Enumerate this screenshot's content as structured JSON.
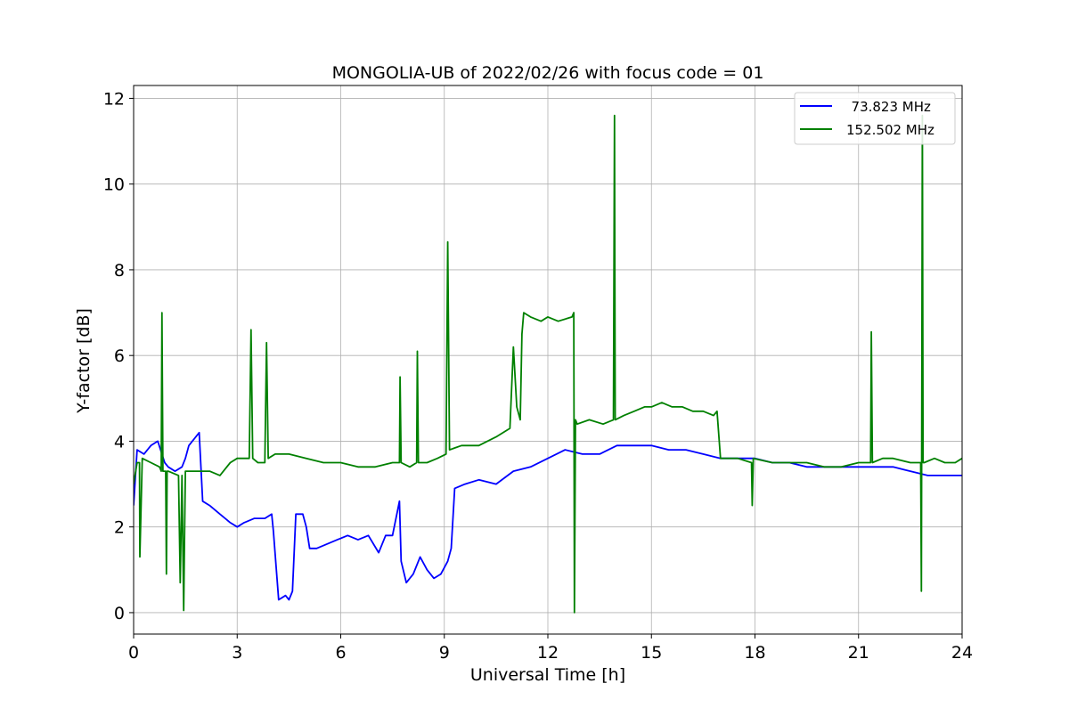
{
  "chart_data": {
    "type": "line",
    "title": "MONGOLIA-UB of 2022/02/26 with focus code = 01",
    "xlabel": "Universal Time [h]",
    "ylabel": "Y-factor [dB]",
    "xlim": [
      0,
      24
    ],
    "ylim": [
      -0.5,
      12.3
    ],
    "xticks": [
      0,
      3,
      6,
      9,
      12,
      15,
      18,
      21,
      24
    ],
    "yticks": [
      0,
      2,
      4,
      6,
      8,
      10,
      12
    ],
    "grid": true,
    "legend_position": "top-right",
    "series": [
      {
        "name": "73.823 MHz",
        "legend_label": "  73.823 MHz",
        "color": "#0000ff",
        "x": [
          0.0,
          0.1,
          0.3,
          0.5,
          0.7,
          0.9,
          1.0,
          1.2,
          1.4,
          1.5,
          1.6,
          1.8,
          1.9,
          2.0,
          2.2,
          2.5,
          2.8,
          3.0,
          3.2,
          3.5,
          3.8,
          4.0,
          4.05,
          4.2,
          4.4,
          4.5,
          4.6,
          4.7,
          4.9,
          5.0,
          5.1,
          5.3,
          5.6,
          5.9,
          6.2,
          6.5,
          6.8,
          7.1,
          7.3,
          7.5,
          7.7,
          7.75,
          7.9,
          8.1,
          8.3,
          8.5,
          8.7,
          8.9,
          9.1,
          9.2,
          9.3,
          9.6,
          10.0,
          10.5,
          11.0,
          11.5,
          12.0,
          12.5,
          13.0,
          13.5,
          14.0,
          14.5,
          15.0,
          15.5,
          16.0,
          16.5,
          17.0,
          17.5,
          18.0,
          18.5,
          19.0,
          19.5,
          20.0,
          20.5,
          21.0,
          21.5,
          22.0,
          22.5,
          23.0,
          23.5,
          24.0
        ],
        "y": [
          2.5,
          3.8,
          3.7,
          3.9,
          4.0,
          3.5,
          3.4,
          3.3,
          3.4,
          3.6,
          3.9,
          4.1,
          4.2,
          2.6,
          2.5,
          2.3,
          2.1,
          2.0,
          2.1,
          2.2,
          2.2,
          2.3,
          1.9,
          0.3,
          0.4,
          0.3,
          0.5,
          2.3,
          2.3,
          2.0,
          1.5,
          1.5,
          1.6,
          1.7,
          1.8,
          1.7,
          1.8,
          1.4,
          1.8,
          1.8,
          2.6,
          1.2,
          0.7,
          0.9,
          1.3,
          1.0,
          0.8,
          0.9,
          1.2,
          1.5,
          2.9,
          3.0,
          3.1,
          3.0,
          3.3,
          3.4,
          3.6,
          3.8,
          3.7,
          3.7,
          3.9,
          3.9,
          3.9,
          3.8,
          3.8,
          3.7,
          3.6,
          3.6,
          3.6,
          3.5,
          3.5,
          3.4,
          3.4,
          3.4,
          3.4,
          3.4,
          3.4,
          3.3,
          3.2,
          3.2,
          3.2
        ]
      },
      {
        "name": "152.502 MHz",
        "legend_label": "152.502 MHz",
        "color": "#008000",
        "x": [
          0.0,
          0.1,
          0.17,
          0.18,
          0.25,
          0.5,
          0.75,
          0.8,
          0.82,
          0.85,
          0.93,
          0.95,
          0.97,
          1.0,
          1.3,
          1.35,
          1.4,
          1.45,
          1.47,
          1.5,
          1.8,
          2.2,
          2.5,
          2.8,
          3.0,
          3.2,
          3.35,
          3.4,
          3.45,
          3.6,
          3.8,
          3.85,
          3.9,
          4.1,
          4.5,
          5.0,
          5.5,
          6.0,
          6.5,
          7.0,
          7.5,
          7.7,
          7.72,
          7.75,
          8.0,
          8.2,
          8.22,
          8.25,
          8.5,
          8.8,
          9.05,
          9.1,
          9.15,
          9.5,
          10.0,
          10.5,
          10.9,
          11.0,
          11.1,
          11.2,
          11.25,
          11.3,
          11.5,
          11.8,
          12.0,
          12.3,
          12.7,
          12.75,
          12.77,
          12.8,
          12.85,
          13.2,
          13.6,
          13.9,
          13.93,
          13.95,
          14.2,
          14.5,
          14.8,
          15.0,
          15.3,
          15.6,
          15.9,
          16.2,
          16.5,
          16.8,
          16.9,
          17.0,
          17.5,
          17.9,
          17.92,
          17.95,
          18.5,
          19.0,
          19.5,
          20.0,
          20.5,
          21.0,
          21.35,
          21.37,
          21.4,
          21.7,
          22.0,
          22.5,
          22.8,
          22.82,
          22.85,
          22.87,
          22.9,
          23.2,
          23.5,
          23.8,
          24.0
        ],
        "y": [
          3.0,
          3.5,
          3.5,
          1.3,
          3.6,
          3.5,
          3.4,
          3.3,
          7.0,
          3.3,
          3.3,
          0.9,
          3.3,
          3.3,
          3.2,
          0.7,
          3.2,
          0.05,
          1.5,
          3.3,
          3.3,
          3.3,
          3.2,
          3.5,
          3.6,
          3.6,
          3.6,
          6.6,
          3.6,
          3.5,
          3.5,
          6.3,
          3.6,
          3.7,
          3.7,
          3.6,
          3.5,
          3.5,
          3.4,
          3.4,
          3.5,
          3.5,
          5.5,
          3.5,
          3.4,
          3.5,
          6.1,
          3.5,
          3.5,
          3.6,
          3.7,
          8.65,
          3.8,
          3.9,
          3.9,
          4.1,
          4.3,
          6.2,
          4.8,
          4.5,
          6.5,
          7.0,
          6.9,
          6.8,
          6.9,
          6.8,
          6.9,
          7.0,
          0.0,
          4.5,
          4.4,
          4.5,
          4.4,
          4.5,
          11.6,
          4.5,
          4.6,
          4.7,
          4.8,
          4.8,
          4.9,
          4.8,
          4.8,
          4.7,
          4.7,
          4.6,
          4.7,
          3.6,
          3.6,
          3.5,
          2.5,
          3.6,
          3.5,
          3.5,
          3.5,
          3.4,
          3.4,
          3.5,
          3.5,
          6.55,
          3.5,
          3.6,
          3.6,
          3.5,
          3.5,
          0.5,
          11.6,
          3.5,
          3.5,
          3.6,
          3.5,
          3.5,
          3.6
        ]
      }
    ]
  }
}
